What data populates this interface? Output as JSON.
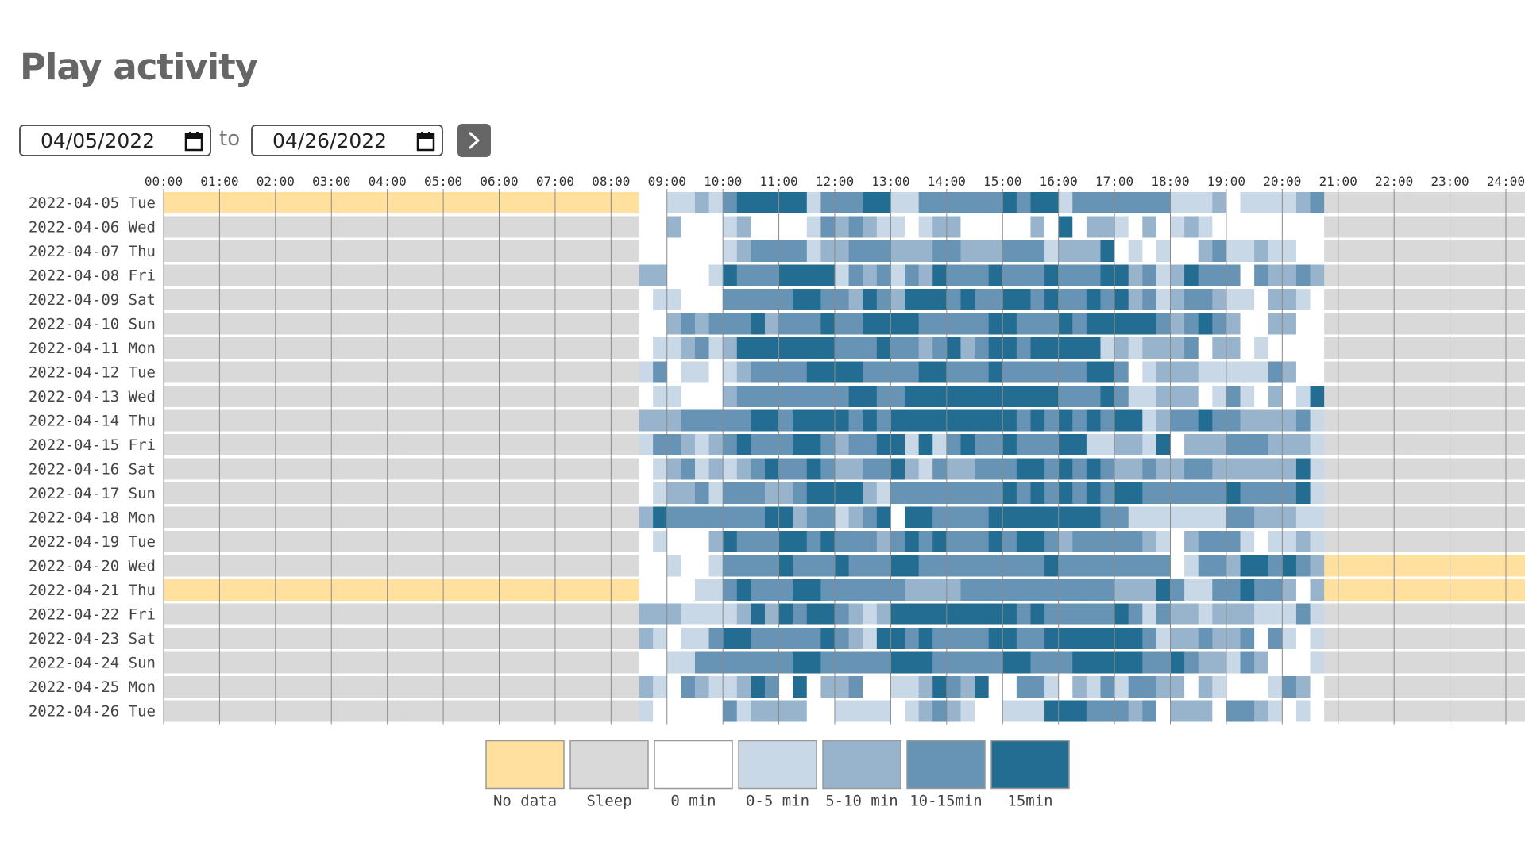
{
  "page": {
    "title": "Play activity"
  },
  "date_range": {
    "from": "04/05/2022",
    "to": "04/26/2022",
    "separator": "to"
  },
  "colors": {
    "nodata": "#ffe09e",
    "sleep": "#d9d9d9",
    "zero": "#ffffff",
    "low": "#c9d8e6",
    "mid": "#98b4cd",
    "high": "#6793b5",
    "max": "#236d93"
  },
  "chart_data": {
    "type": "heatmap",
    "title": "Play activity",
    "x_ticks": [
      "00:00",
      "01:00",
      "02:00",
      "03:00",
      "04:00",
      "05:00",
      "06:00",
      "07:00",
      "08:00",
      "09:00",
      "10:00",
      "11:00",
      "12:00",
      "13:00",
      "14:00",
      "15:00",
      "16:00",
      "17:00",
      "18:00",
      "19:00",
      "20:00",
      "21:00",
      "22:00",
      "23:00",
      "24:00"
    ],
    "xlim": [
      0,
      24
    ],
    "slot_minutes": 15,
    "legend": [
      {
        "key": "nodata",
        "label": "No data"
      },
      {
        "key": "sleep",
        "label": "Sleep"
      },
      {
        "key": "zero",
        "label": "0 min"
      },
      {
        "key": "low",
        "label": "0-5 min"
      },
      {
        "key": "mid",
        "label": "5-10 min"
      },
      {
        "key": "high",
        "label": "10-15min"
      },
      {
        "key": "max",
        "label": "15min"
      }
    ],
    "value_codes": {
      "Y": "nodata",
      "S": "sleep",
      "0": "zero",
      "1": "low",
      "2": "mid",
      "3": "high",
      "4": "max"
    },
    "rows": [
      {
        "label": "2022-04-05 Tue",
        "cells": "YYYYYYYYYYYYYYYYYYYYYYYYYYYYYYYYYY0011213444441333441133333343441333333311120111123SSSSSSSSSSSSSSSS"
      },
      {
        "label": "2022-04-06 Wed",
        "cells": "SSSSSSSSSSSSSSSSSSSSSSSSSSSSSSSSSS0020001200001323211012200000204022102012100000000SSSSSSSSSSSSSSSS"
      },
      {
        "label": "2022-04-07 Thu",
        "cells": "SSSSSSSSSSSSSSSSSSSSSSSSSSSSSSSSSS0000001233331223332223322233312224010100231121100SSSSSSSSSSSSSSSS"
      },
      {
        "label": "2022-04-08 Fri",
        "cells": "SSSSSSSSSSSSSSSSSSSSSSSSSSSSSSSSSS2200014333444413231324333433343334423124333032232SSSSSSSSSSSSSSSS"
      },
      {
        "label": "2022-04-09 Sat",
        "cells": "SSSSSSSSSSSSSSSSSSSSSSSSSSSSSSSSSS0110003333344332432444343344343343423123321102210SSSSSSSSSSSSSSSS"
      },
      {
        "label": "2022-04-10 Sun",
        "cells": "SSSSSSSSSSSSSSSSSSSSSSSSSSSSSSSSSS0023233342333433444433333443334344444323432002200SSSSSSSSSSSSSSSS"
      },
      {
        "label": "2022-04-11 Mon",
        "cells": "SSSSSSSSSSSSSSSSSSSSSSSSSSSSSSSSSS0112312444444433343323423443444441212223022010000SSSSSSSSSSSSSSSS"
      },
      {
        "label": "2022-04-12 Tue",
        "cells": "SSSSSSSSSSSSSSSSSSSSSSSSSSSSSSSSSS1301101233334444333344333433333344301222111113200SSSSSSSSSSSSSSSS"
      },
      {
        "label": "2022-04-13 Wed",
        "cells": "SSSSSSSSSSSSSSSSSSSSSSSSSSSSSSSSSS0110002333333334433444444444443334311222013102014SSSSSSSSSSSSSSSS"
      },
      {
        "label": "2022-04-14 Thu",
        "cells": "SSSSSSSSSSSSSSSSSSSSSSSSSSSSSSSSSS2223333344344443434444444443434343441233433222231SSSSSSSSSSSSSSSS"
      },
      {
        "label": "2022-04-15 Fri",
        "cells": "SSSSSSSSSSSSSSSSSSSSSSSSSSSSSSSSSS1332123433344323344141343343334411221402223332221SSSSSSSSSSSSSSSS"
      },
      {
        "label": "2022-04-16 Sat",
        "cells": "SSSSSSSSSSSSSSSSSSSSSSSSSSSSSSSSSS0123121234334322334213223334434343223223322222241SSSSSSSSSSSSSSSS"
      },
      {
        "label": "2022-04-17 Sun",
        "cells": "SSSSSSSSSSSSSSSSSSSSSSSSSSSSSSSSSS0122313332234444213333333343434343443333334333341SSSSSSSSSSSSSSSS"
      },
      {
        "label": "2022-04-18 Mon",
        "cells": "SSSSSSSSSSSSSSSSSSSSSSSSSSSSSSSSSS2433333334423312340443333444444443311111113322211SSSSSSSSSSSSSSSS"
      },
      {
        "label": "2022-04-19 Tue",
        "cells": "SSSSSSSSSSSSSSSSSSSSSSSSSSSSSSSSSS0100024333443433323434333434432333332102333101121SSSSSSSSSSSSSSSS"
      },
      {
        "label": "2022-04-20 Wed",
        "cells": "SSSSSSSSSSSSSSSSSSSSSSSSSSSSSSSSSS0010013333433343334433333333343333333301332443432YYYYYYYYYYYYYYYY"
      },
      {
        "label": "2022-04-21 Thu",
        "cells": "YYYYYYYYYYYYYYYYYYYYYYYYYYYYYYYYYY0000113433344333333222233333333333222431133433202YYYYYYYYYYYYYYYY"
      },
      {
        "label": "2022-04-22 Fri",
        "cells": "SSSSSSSSSSSSSSSSSSSSSSSSSSSSSSSSSS2221111242434432124444444443433333431322122211131SSSSSSSSSSSSSSSS"
      },
      {
        "label": "2022-04-23 Sat",
        "cells": "SSSSSSSSSSSSSSSSSSSSSSSSSSSSSSSSSS2101134433333432144343333443344444443122322303101SSSSSSSSSSSSSSSS"
      },
      {
        "label": "2022-04-24 Sun",
        "cells": "SSSSSSSSSSSSSSSSSSSSSSSSSSSSSSSSSS0011333333344333334443333344333444443343221320001SSSSSSSSSSSSSSSS"
      },
      {
        "label": "2022-04-25 Mon",
        "cells": "SSSSSSSSSSSSSSSSSSSSSSSSSSSSSSSSSS2103211243040223001124324003310213133220210001320SSSSSSSSSSSSSSSS"
      },
      {
        "label": "2022-04-26 Tue",
        "cells": "SSSSSSSSSSSSSSSSSSSSSSSSSSSSSSSSSS1000003122220011110123210011144433323022203321010SSSSSSSSSSSSSSSS"
      }
    ]
  }
}
